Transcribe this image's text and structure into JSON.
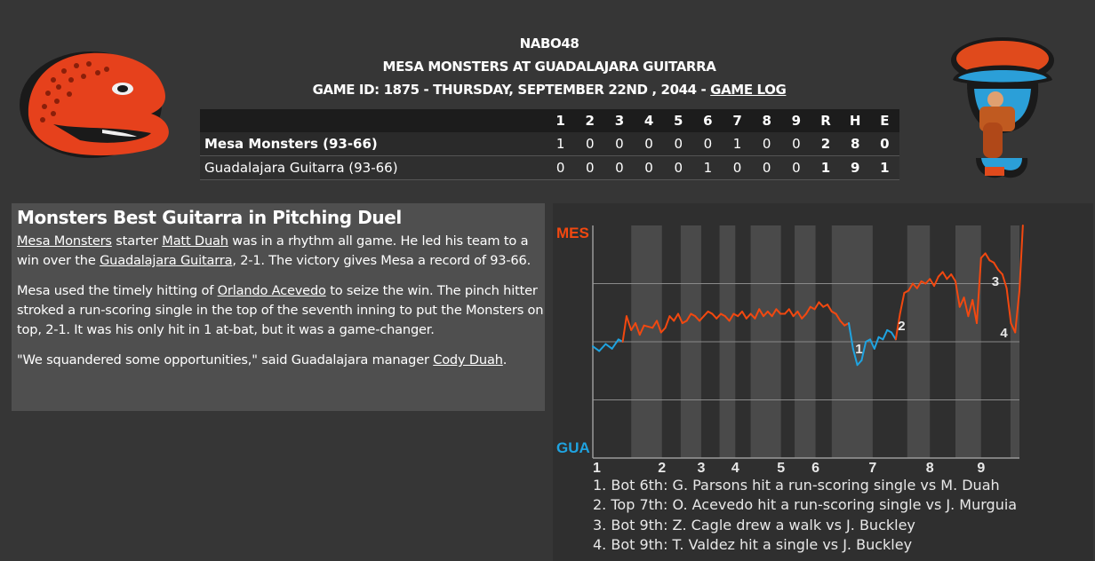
{
  "header": {
    "league": "NABO48",
    "matchup": "MESA MONSTERS AT GUADALAJARA GUITARRA",
    "game_info": "GAME ID: 1875 - THURSDAY, SEPTEMBER 22ND , 2044 - ",
    "game_log_link": "GAME LOG"
  },
  "boxscore": {
    "innings": [
      "1",
      "2",
      "3",
      "4",
      "5",
      "6",
      "7",
      "8",
      "9"
    ],
    "totals_headers": [
      "R",
      "H",
      "E"
    ],
    "rows": [
      {
        "team": "Mesa Monsters (93-66)",
        "innings": [
          "1",
          "0",
          "0",
          "0",
          "0",
          "0",
          "1",
          "0",
          "0"
        ],
        "totals": [
          "2",
          "8",
          "0"
        ]
      },
      {
        "team": "Guadalajara Guitarra (93-66)",
        "innings": [
          "0",
          "0",
          "0",
          "0",
          "0",
          "1",
          "0",
          "0",
          "0"
        ],
        "totals": [
          "1",
          "9",
          "1"
        ]
      }
    ]
  },
  "article": {
    "headline": "Monsters Best Guitarra in Pitching Duel",
    "p1": {
      "team_link": "Mesa Monsters",
      "t1": " starter ",
      "player_link": "Matt Duah",
      "t2": " was in a rhythm all game. He led his team to a win over the ",
      "opp_link": "Guadalajara Guitarra",
      "t3": ", 2-1. The victory gives Mesa a record of 93-66."
    },
    "p2": {
      "t1": "Mesa used the timely hitting of ",
      "player_link": "Orlando Acevedo",
      "t2": " to seize the win. The pinch hitter stroked a run-scoring single in the top of the seventh inning to put the Monsters on top, 2-1. It was his only hit in 1 at-bat, but it was a game-changer."
    },
    "p3": {
      "t1": "\"We squandered some opportunities,\" said Guadalajara manager ",
      "manager_link": "Cody Duah",
      "t2": "."
    }
  },
  "chart_data": {
    "type": "line",
    "y_top_label": "MES",
    "y_bottom_label": "GUA",
    "ylim": [
      0,
      100
    ],
    "inning_labels": [
      "1",
      "2",
      "3",
      "4",
      "5",
      "6",
      "7",
      "8",
      "9"
    ],
    "inning_label_x": [
      0,
      16.2,
      25.4,
      33.4,
      44.1,
      52.2,
      65.6,
      79,
      91
    ],
    "shaded_bands": [
      [
        9,
        16.2
      ],
      [
        20.6,
        25.4
      ],
      [
        29.7,
        33.4
      ],
      [
        37,
        44.1
      ],
      [
        47.3,
        52.2
      ],
      [
        56,
        65.6
      ],
      [
        73.7,
        79
      ],
      [
        85,
        91
      ],
      [
        97.9,
        100
      ]
    ],
    "series": [
      {
        "values": [
          [
            0,
            48
          ],
          [
            1.5,
            46
          ],
          [
            3,
            49
          ],
          [
            4.5,
            47
          ],
          [
            6,
            51
          ],
          [
            7,
            50
          ],
          [
            7.9,
            61
          ],
          [
            9,
            55
          ],
          [
            10,
            58
          ],
          [
            11,
            53
          ],
          [
            12,
            57
          ],
          [
            14,
            56
          ],
          [
            15,
            59
          ],
          [
            16,
            54
          ],
          [
            17,
            56
          ],
          [
            18,
            61
          ],
          [
            19,
            59
          ],
          [
            20,
            62
          ],
          [
            21,
            58
          ],
          [
            22,
            59
          ],
          [
            23,
            62
          ],
          [
            24,
            61
          ],
          [
            25,
            59
          ],
          [
            26,
            61
          ],
          [
            27,
            63
          ],
          [
            28,
            62
          ],
          [
            29,
            60
          ],
          [
            30,
            62
          ],
          [
            31,
            61
          ],
          [
            32,
            59
          ],
          [
            33,
            62
          ],
          [
            34,
            61
          ],
          [
            35,
            63
          ],
          [
            36,
            60
          ],
          [
            37,
            62
          ],
          [
            38,
            60
          ],
          [
            39,
            64
          ],
          [
            40,
            61
          ],
          [
            41,
            63
          ],
          [
            42,
            61
          ],
          [
            43,
            64
          ],
          [
            44,
            62
          ],
          [
            45,
            62
          ],
          [
            46,
            64
          ],
          [
            47,
            61
          ],
          [
            48,
            63
          ],
          [
            49,
            60
          ],
          [
            50,
            62
          ],
          [
            51,
            65
          ],
          [
            52,
            64
          ],
          [
            53,
            67
          ],
          [
            54,
            65
          ],
          [
            55,
            66
          ],
          [
            56,
            63
          ],
          [
            57,
            62
          ],
          [
            58,
            59
          ],
          [
            59,
            57
          ],
          [
            60,
            58
          ],
          [
            61,
            47
          ],
          [
            62,
            40
          ],
          [
            63,
            42
          ],
          [
            64,
            50
          ],
          [
            65,
            51
          ],
          [
            66,
            47
          ],
          [
            67,
            52
          ],
          [
            68,
            51
          ],
          [
            69,
            55
          ],
          [
            70,
            54
          ],
          [
            71,
            51
          ],
          [
            72,
            62
          ],
          [
            73,
            71
          ],
          [
            74,
            72
          ],
          [
            75,
            75
          ],
          [
            76,
            73
          ],
          [
            77,
            76
          ],
          [
            78,
            75
          ],
          [
            79,
            77
          ],
          [
            80,
            74
          ],
          [
            81,
            78
          ],
          [
            82,
            80
          ],
          [
            83,
            77
          ],
          [
            84,
            79
          ],
          [
            85,
            76
          ],
          [
            86,
            65
          ],
          [
            87,
            69
          ],
          [
            88,
            61
          ],
          [
            89,
            68
          ],
          [
            90,
            58
          ],
          [
            91,
            86
          ],
          [
            92,
            88
          ],
          [
            93,
            85
          ],
          [
            94,
            84
          ],
          [
            95,
            81
          ],
          [
            96,
            79
          ],
          [
            97,
            73
          ],
          [
            98,
            58
          ],
          [
            99,
            54
          ],
          [
            100,
            72
          ],
          [
            101,
            100
          ]
        ]
      }
    ],
    "mes_color": "#f24810",
    "gua_color": "#1fa3e0",
    "markers": [
      {
        "label": "1",
        "x": 61.5,
        "y": 45
      },
      {
        "label": "2",
        "x": 71.5,
        "y": 55
      },
      {
        "label": "3",
        "x": 93.5,
        "y": 74
      },
      {
        "label": "4",
        "x": 95.5,
        "y": 52
      }
    ],
    "events": [
      "1. Bot 6th: G. Parsons hit a run-scoring single vs M. Duah",
      "2. Top 7th: O. Acevedo hit a run-scoring single vs J. Murguia",
      "3. Bot 9th: Z. Cagle drew a walk vs J. Buckley",
      "4. Bot 9th: T. Valdez hit a single vs J. Buckley"
    ]
  },
  "logos": {
    "away": {
      "icon": "mesa-monsters-lizard-logo",
      "primary": "#e6411c",
      "secondary": "#1a1a1a"
    },
    "home": {
      "icon": "guadalajara-guitarra-guitarist-logo",
      "primary": "#2b9fd8",
      "secondary": "#e04a1c"
    }
  }
}
